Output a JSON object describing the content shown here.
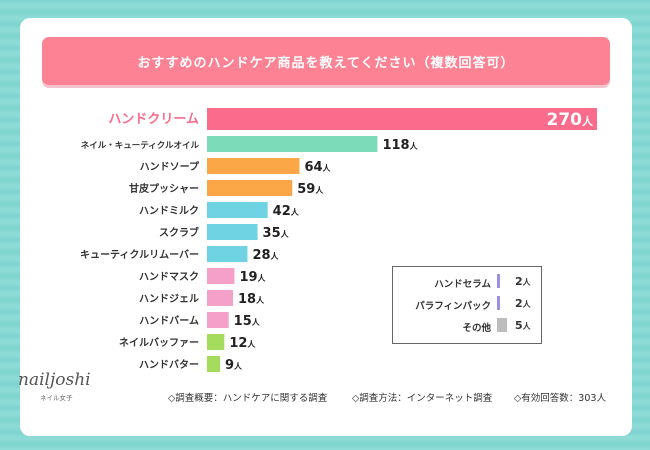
{
  "title": "おすすめのハンドケア商品を教えてください（複数回答可）",
  "chart_data": {
    "type": "bar",
    "orientation": "horizontal",
    "unit": "人",
    "categories": [
      "ハンドクリーム",
      "ネイル・キューティクルオイル",
      "ハンドソープ",
      "甘皮プッシャー",
      "ハンドミルク",
      "スクラブ",
      "キューティクルリムーバー",
      "ハンドマスク",
      "ハンドジェル",
      "ハンドバーム",
      "ネイルバッファー",
      "ハンドバター"
    ],
    "values": [
      270,
      118,
      64,
      59,
      42,
      35,
      28,
      19,
      18,
      15,
      12,
      9
    ],
    "colors": [
      "#fb6b8b",
      "#7cdbb8",
      "#fba747",
      "#fba747",
      "#6fd3e3",
      "#6fd3e3",
      "#6fd3e3",
      "#f4a0c8",
      "#f4a0c8",
      "#f4a0c8",
      "#a6dc5e",
      "#a6dc5e"
    ]
  },
  "legend_other": [
    {
      "name": "ハンドセラム",
      "value": "2",
      "color": "#9a8fe0"
    },
    {
      "name": "パラフィンパック",
      "value": "2",
      "color": "#9a8fe0"
    },
    {
      "name": "その他",
      "value": "5",
      "color": "#bdbdbd"
    }
  ],
  "logo": {
    "text": "nailjoshi",
    "sub": "ネイル女子"
  },
  "footer": {
    "overview": "◇調査概要：ハンドケアに関する調査",
    "method": "◇調査方法：インターネット調査",
    "responses": "◇有効回答数：303人"
  }
}
